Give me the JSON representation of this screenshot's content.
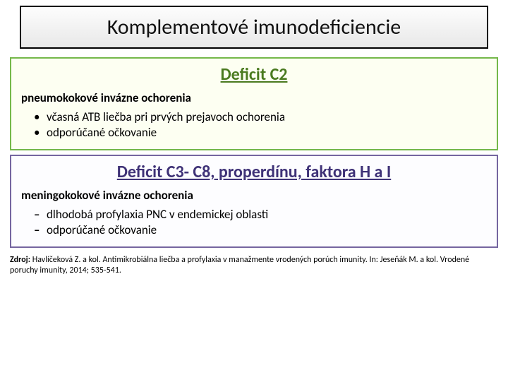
{
  "title": "Komplementové imunodeficiencie",
  "panel1": {
    "heading": "Deficit C2",
    "subhead": "pneumokokové invázne ochorenia",
    "item1": "včasná ATB liečba pri prvých prejavoch ochorenia",
    "item2": "odporúčané očkovanie"
  },
  "panel2": {
    "heading": "Deficit C3- C8, properdínu, faktora H a I",
    "subhead": "meningokokové invázne ochorenia",
    "item1": "dlhodobá profylaxia PNC v endemickej oblasti",
    "item2": "odporúčané očkovanie"
  },
  "citation": {
    "label": "Zdroj:",
    "text": "Havlíčeková Z. a kol. Antimikrobiálna liečba a profylaxia v manažmente vrodených porúch imunity. In: Jeseňák M. a kol. Vrodené poruchy imunity, 2014; 535-541."
  },
  "colors": {
    "green_border": "#74b84a",
    "green_bg": "#fdfff2",
    "green_text": "#4a7a1f",
    "purple_border": "#7566a0",
    "purple_bg": "#fdfdff",
    "purple_text": "#3f3277"
  }
}
